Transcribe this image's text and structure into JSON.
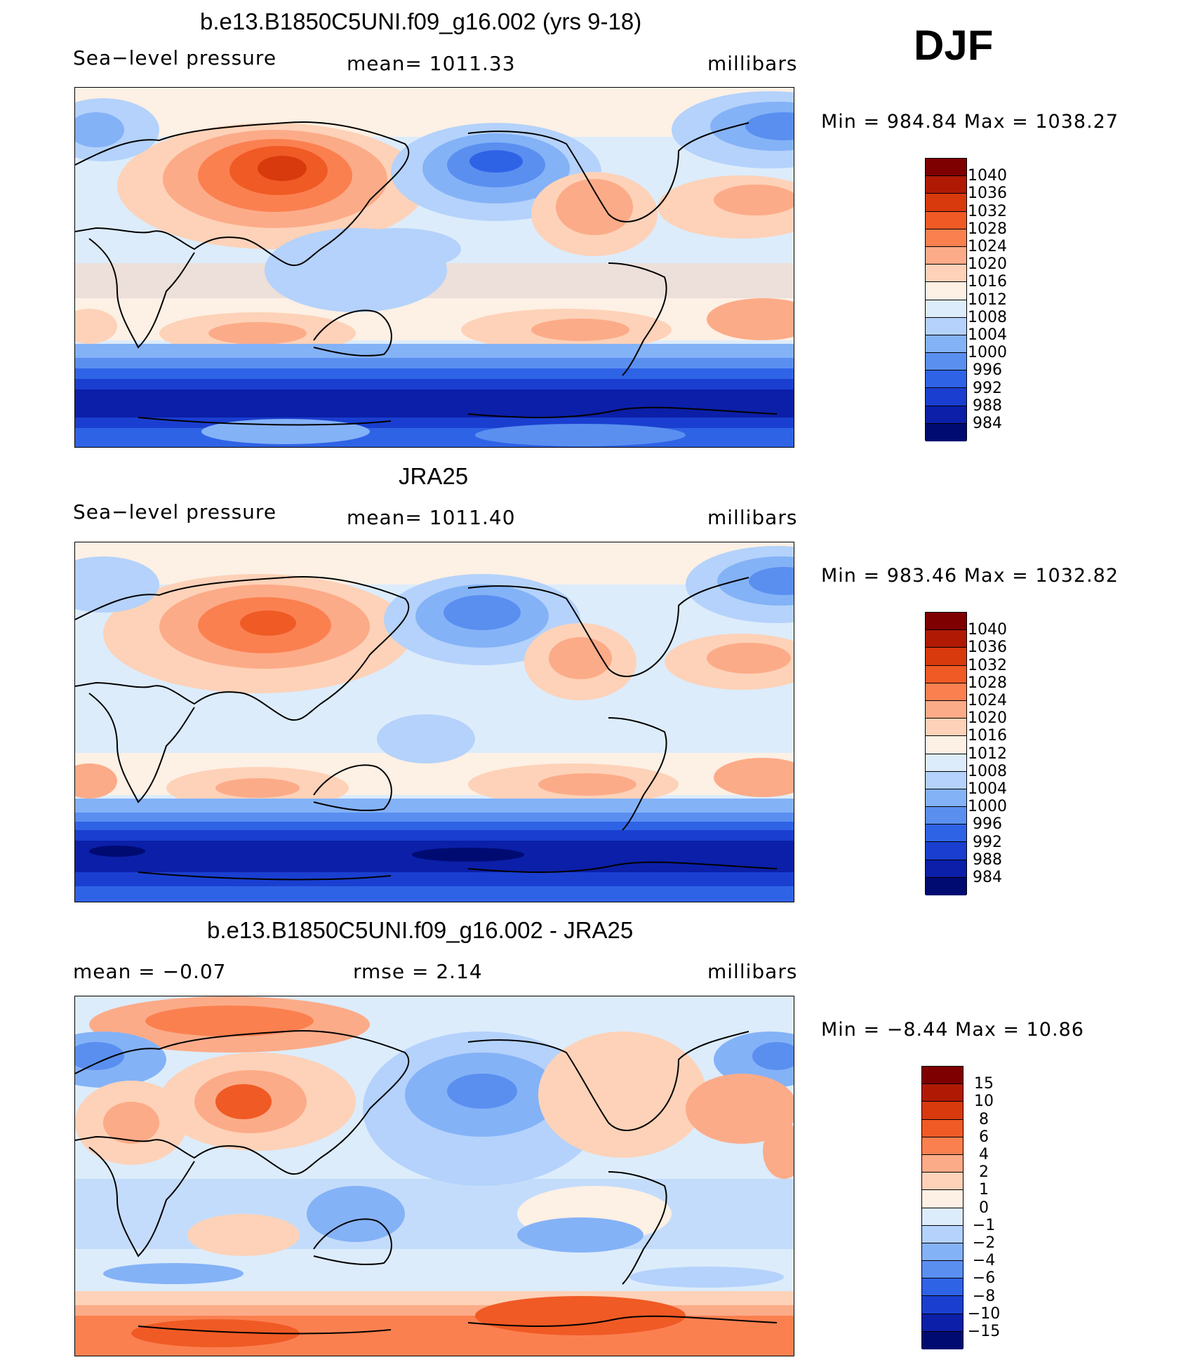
{
  "season": "DJF",
  "units": "millibars",
  "panels": [
    {
      "title": "b.e13.B1850C5UNI.f09_g16.002 (yrs 9-18)",
      "variable": "Sea−level pressure",
      "mean_text": "mean=  1011.33",
      "units": "millibars",
      "minmax_text": "Min  =  984.84  Max  =  1038.27",
      "colorbar": [
        "1040",
        "1036",
        "1032",
        "1028",
        "1024",
        "1020",
        "1016",
        "1012",
        "1008",
        "1004",
        "1000",
        "996",
        "992",
        "988",
        "984"
      ]
    },
    {
      "title": "JRA25",
      "variable": "Sea−level pressure",
      "mean_text": "mean=  1011.40",
      "units": "millibars",
      "minmax_text": "Min  =  983.46  Max  =  1032.82",
      "colorbar": [
        "1040",
        "1036",
        "1032",
        "1028",
        "1024",
        "1020",
        "1016",
        "1012",
        "1008",
        "1004",
        "1000",
        "996",
        "992",
        "988",
        "984"
      ]
    },
    {
      "title": "b.e13.B1850C5UNI.f09_g16.002 - JRA25",
      "mean_text": "mean  =    −0.07",
      "rmse_text": "rmse  =      2.14",
      "units": "millibars",
      "minmax_text": "Min  =    −8.44  Max  =    10.86",
      "colorbar": [
        "15",
        "10",
        "8",
        "6",
        "4",
        "2",
        "1",
        "0",
        "−1",
        "−2",
        "−4",
        "−6",
        "−8",
        "−10",
        "−15"
      ]
    }
  ],
  "colors": {
    "abs_scale": [
      "#7f0000",
      "#b01a05",
      "#d83a0e",
      "#f05a25",
      "#fb8050",
      "#fcab88",
      "#fdd2b8",
      "#fdf0e4",
      "#dcecfb",
      "#b4d2fb",
      "#84b2f7",
      "#5a8ff0",
      "#2f63e6",
      "#1a3fd0",
      "#0b1fa8",
      "#000b72"
    ],
    "diff_scale": [
      "#7f0000",
      "#b01a05",
      "#d83a0e",
      "#f05a25",
      "#fb8050",
      "#fcab88",
      "#fdd2b8",
      "#fdf0e4",
      "#dcecfb",
      "#b4d2fb",
      "#84b2f7",
      "#5a8ff0",
      "#2f63e6",
      "#1a3fd0",
      "#0b1fa8",
      "#000b72"
    ]
  }
}
